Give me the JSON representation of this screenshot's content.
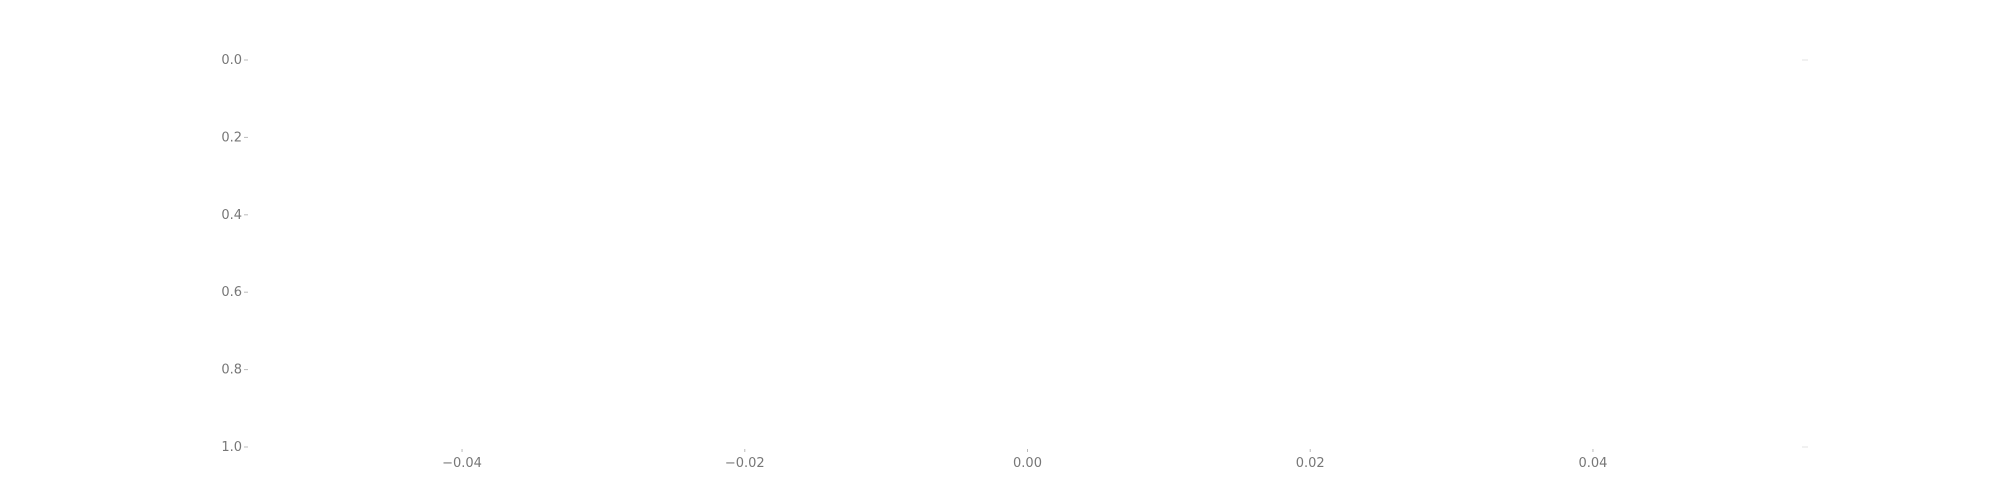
{
  "chart_data": {
    "type": "scatter",
    "title": "",
    "xlabel": "",
    "ylabel": "",
    "xlim": [
      -0.055,
      0.055
    ],
    "ylim": [
      0.0,
      1.0
    ],
    "y_inverted": true,
    "x_ticks": [
      -0.04,
      -0.02,
      0.0,
      0.02,
      0.04
    ],
    "x_tick_labels": [
      "−0.04",
      "−0.02",
      "0.00",
      "0.02",
      "0.04"
    ],
    "y_ticks": [
      0.0,
      0.2,
      0.4,
      0.6,
      0.8,
      1.0
    ],
    "y_tick_labels": [
      "0.0",
      "0.2",
      "0.4",
      "0.6",
      "0.8",
      "1.0"
    ],
    "grid": false,
    "legend": "none",
    "series": []
  }
}
